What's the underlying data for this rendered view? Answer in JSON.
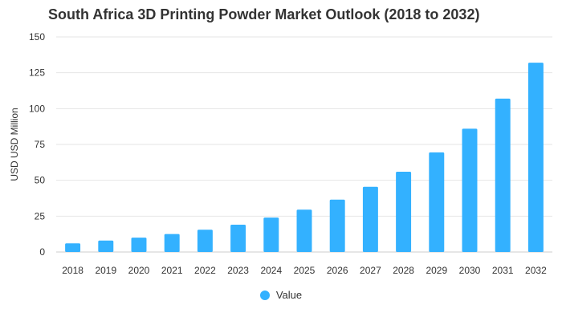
{
  "chart_data": {
    "type": "bar",
    "title": "South Africa 3D Printing Powder Market Outlook (2018 to 2032)",
    "xlabel": "",
    "ylabel": "USD USD Million",
    "categories": [
      "2018",
      "2019",
      "2020",
      "2021",
      "2022",
      "2023",
      "2024",
      "2025",
      "2026",
      "2027",
      "2028",
      "2029",
      "2030",
      "2031",
      "2032"
    ],
    "series": [
      {
        "name": "Value",
        "values": [
          6,
          8,
          10,
          12.5,
          15.5,
          19,
          24,
          29.5,
          36.5,
          45.5,
          56,
          69.5,
          86,
          107,
          132
        ],
        "color": "#33b1ff"
      }
    ],
    "ylim": [
      0,
      150
    ],
    "yticks": [
      0,
      25,
      50,
      75,
      100,
      125,
      150
    ],
    "grid": true,
    "legend_position": "bottom"
  }
}
